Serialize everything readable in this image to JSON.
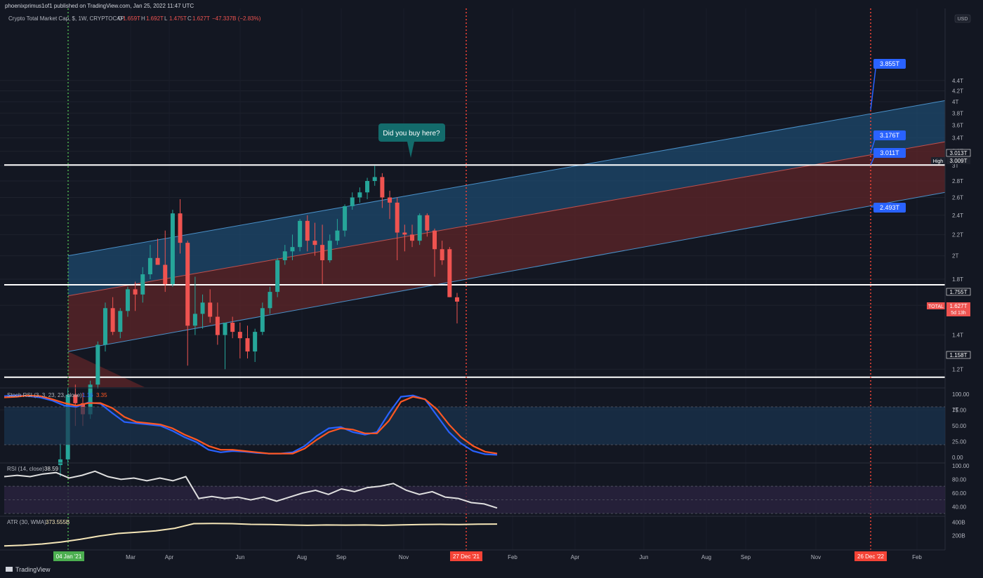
{
  "header": {
    "publisher": "phoenixprimus1of1 published on TradingView.com, Jan 25, 2022 11:47 UTC",
    "symbol_line": "Crypto Total Market Cap, $, 1W, CRYPTOCAP",
    "ohlc": {
      "o_label": "O",
      "o": "1.659T",
      "h_label": "H",
      "h": "1.692T",
      "l_label": "L",
      "l": "1.475T",
      "c_label": "C",
      "c": "1.627T",
      "change": "−47.337B (−2.83%)"
    },
    "currency": "USD"
  },
  "footer": {
    "brand": "TradingView"
  },
  "colors": {
    "up": "#26a69a",
    "down": "#ef5350",
    "bg": "#131722",
    "blue_band": "#1e4a6e",
    "red_band": "#5a2428",
    "blue_label": "#2962ff",
    "rsi_k": "#2962ff",
    "rsi_d": "#ff5722"
  },
  "annotation": {
    "text": "Did you buy here?"
  },
  "markers": {
    "start_date": "04 Jan '21",
    "mid_date": "27 Dec '21",
    "end_date": "26 Dec '22"
  },
  "channel_labels": [
    "3.855T",
    "3.176T",
    "3.011T",
    "2.493T"
  ],
  "price_labels": {
    "high_text": "High",
    "high_value": "3.009T",
    "level_top": "3.013T",
    "level_mid": "1.755T",
    "level_low": "1.158T",
    "symbol": "TOTAL",
    "last": "1.627T",
    "countdown": "5d 13h"
  },
  "chart_data": [
    {
      "type": "candlestick",
      "title": "Crypto Total Market Cap, $, 1W, CRYPTOCAP",
      "y_axis_ticks": [
        "4.4T",
        "4.2T",
        "4T",
        "3.8T",
        "3.6T",
        "3.4T",
        "3.2T",
        "3T",
        "2.8T",
        "2.6T",
        "2.4T",
        "2.2T",
        "2T",
        "1.8T",
        "1.6T",
        "1.4T",
        "1.2T",
        "1T"
      ],
      "x_axis_ticks": [
        "Mar",
        "Apr",
        "Jun",
        "Aug",
        "Sep",
        "Nov",
        "Feb",
        "Apr",
        "Jun",
        "Aug",
        "Sep",
        "Nov",
        "Feb"
      ],
      "horizontal_levels": [
        3.009,
        1.755,
        1.158
      ],
      "channel": {
        "upper_end": 3.855,
        "middle_end": 3.176,
        "lower_end": 2.493
      },
      "candles": [
        {
          "o": 0.78,
          "h": 0.86,
          "l": 0.74,
          "c": 0.8
        },
        {
          "o": 0.8,
          "h": 1.1,
          "l": 0.78,
          "c": 1.07
        },
        {
          "o": 1.07,
          "h": 1.12,
          "l": 0.93,
          "c": 1.03
        },
        {
          "o": 1.03,
          "h": 1.08,
          "l": 0.93,
          "c": 0.98
        },
        {
          "o": 0.98,
          "h": 1.14,
          "l": 0.96,
          "c": 1.12
        },
        {
          "o": 1.12,
          "h": 1.36,
          "l": 1.1,
          "c": 1.34
        },
        {
          "o": 1.34,
          "h": 1.62,
          "l": 1.3,
          "c": 1.58
        },
        {
          "o": 1.58,
          "h": 1.66,
          "l": 1.4,
          "c": 1.42
        },
        {
          "o": 1.42,
          "h": 1.58,
          "l": 1.38,
          "c": 1.56
        },
        {
          "o": 1.56,
          "h": 1.74,
          "l": 1.52,
          "c": 1.72
        },
        {
          "o": 1.72,
          "h": 1.78,
          "l": 1.56,
          "c": 1.68
        },
        {
          "o": 1.68,
          "h": 1.9,
          "l": 1.62,
          "c": 1.84
        },
        {
          "o": 1.84,
          "h": 2.1,
          "l": 1.8,
          "c": 1.98
        },
        {
          "o": 1.98,
          "h": 2.16,
          "l": 1.92,
          "c": 1.92
        },
        {
          "o": 1.92,
          "h": 2.24,
          "l": 1.7,
          "c": 1.76
        },
        {
          "o": 1.76,
          "h": 2.46,
          "l": 1.74,
          "c": 2.42
        },
        {
          "o": 2.42,
          "h": 2.58,
          "l": 2.02,
          "c": 2.12
        },
        {
          "o": 2.12,
          "h": 2.14,
          "l": 1.22,
          "c": 1.46
        },
        {
          "o": 1.46,
          "h": 1.82,
          "l": 1.4,
          "c": 1.54
        },
        {
          "o": 1.54,
          "h": 1.68,
          "l": 1.44,
          "c": 1.62
        },
        {
          "o": 1.62,
          "h": 1.72,
          "l": 1.48,
          "c": 1.52
        },
        {
          "o": 1.52,
          "h": 1.62,
          "l": 1.34,
          "c": 1.4
        },
        {
          "o": 1.4,
          "h": 1.48,
          "l": 1.2,
          "c": 1.48
        },
        {
          "o": 1.48,
          "h": 1.52,
          "l": 1.38,
          "c": 1.42
        },
        {
          "o": 1.42,
          "h": 1.48,
          "l": 1.26,
          "c": 1.38
        },
        {
          "o": 1.38,
          "h": 1.46,
          "l": 1.26,
          "c": 1.3
        },
        {
          "o": 1.3,
          "h": 1.44,
          "l": 1.24,
          "c": 1.42
        },
        {
          "o": 1.42,
          "h": 1.62,
          "l": 1.4,
          "c": 1.58
        },
        {
          "o": 1.58,
          "h": 1.74,
          "l": 1.54,
          "c": 1.7
        },
        {
          "o": 1.7,
          "h": 1.98,
          "l": 1.66,
          "c": 1.96
        },
        {
          "o": 1.96,
          "h": 2.1,
          "l": 1.92,
          "c": 2.04
        },
        {
          "o": 2.04,
          "h": 2.2,
          "l": 1.96,
          "c": 2.08
        },
        {
          "o": 2.08,
          "h": 2.36,
          "l": 2.04,
          "c": 2.34
        },
        {
          "o": 2.34,
          "h": 2.4,
          "l": 2.04,
          "c": 2.14
        },
        {
          "o": 2.14,
          "h": 2.32,
          "l": 2.0,
          "c": 2.1
        },
        {
          "o": 2.1,
          "h": 2.3,
          "l": 1.76,
          "c": 1.96
        },
        {
          "o": 1.96,
          "h": 2.2,
          "l": 1.94,
          "c": 2.14
        },
        {
          "o": 2.14,
          "h": 2.36,
          "l": 2.1,
          "c": 2.24
        },
        {
          "o": 2.24,
          "h": 2.52,
          "l": 2.18,
          "c": 2.5
        },
        {
          "o": 2.5,
          "h": 2.66,
          "l": 2.46,
          "c": 2.6
        },
        {
          "o": 2.6,
          "h": 2.72,
          "l": 2.54,
          "c": 2.66
        },
        {
          "o": 2.66,
          "h": 2.84,
          "l": 2.58,
          "c": 2.8
        },
        {
          "o": 2.8,
          "h": 3.0,
          "l": 2.74,
          "c": 2.85
        },
        {
          "o": 2.85,
          "h": 2.9,
          "l": 2.48,
          "c": 2.6
        },
        {
          "o": 2.6,
          "h": 2.68,
          "l": 2.36,
          "c": 2.54
        },
        {
          "o": 2.54,
          "h": 2.6,
          "l": 1.96,
          "c": 2.22
        },
        {
          "o": 2.22,
          "h": 2.3,
          "l": 2.04,
          "c": 2.2
        },
        {
          "o": 2.2,
          "h": 2.3,
          "l": 2.08,
          "c": 2.14
        },
        {
          "o": 2.14,
          "h": 2.42,
          "l": 2.1,
          "c": 2.4
        },
        {
          "o": 2.4,
          "h": 2.42,
          "l": 2.18,
          "c": 2.24
        },
        {
          "o": 2.24,
          "h": 2.26,
          "l": 1.82,
          "c": 2.06
        },
        {
          "o": 2.06,
          "h": 2.14,
          "l": 1.92,
          "c": 1.96
        },
        {
          "o": 2.06,
          "h": 2.08,
          "l": 1.66,
          "c": 1.66
        },
        {
          "o": 1.659,
          "h": 1.692,
          "l": 1.475,
          "c": 1.627
        }
      ]
    },
    {
      "type": "line",
      "title": "Stoch RSI (3, 3, 23, 23, close)",
      "values_text": [
        "1.16",
        "3.35"
      ],
      "y_axis_ticks": [
        "100.00",
        "75.00",
        "50.00",
        "25.00",
        "0.00"
      ],
      "ylim": [
        0,
        100
      ],
      "series": [
        {
          "values": [
            97,
            98,
            97,
            95,
            90,
            82,
            80,
            87,
            85,
            70,
            56,
            54,
            52,
            50,
            42,
            32,
            24,
            12,
            8,
            10,
            9,
            7,
            6,
            6,
            8,
            18,
            34,
            46,
            48,
            40,
            36,
            40,
            70,
            96,
            98,
            92,
            66,
            40,
            22,
            10,
            5,
            4
          ]
        },
        {
          "values": [
            95,
            96,
            98,
            97,
            92,
            86,
            82,
            86,
            86,
            78,
            64,
            56,
            54,
            52,
            46,
            36,
            28,
            18,
            12,
            12,
            10,
            8,
            6,
            6,
            6,
            14,
            28,
            40,
            46,
            44,
            38,
            38,
            58,
            88,
            96,
            92,
            76,
            52,
            32,
            18,
            9,
            6
          ]
        }
      ]
    },
    {
      "type": "line",
      "title": "RSI (14, close)",
      "values_text": [
        "38.59"
      ],
      "y_axis_ticks": [
        "100.00",
        "80.00",
        "60.00",
        "40.00"
      ],
      "ylim": [
        30,
        100
      ],
      "series": [
        {
          "values": [
            84,
            86,
            84,
            88,
            90,
            82,
            86,
            92,
            84,
            80,
            82,
            78,
            82,
            78,
            84,
            52,
            55,
            52,
            54,
            50,
            54,
            48,
            54,
            60,
            64,
            58,
            66,
            62,
            68,
            70,
            74,
            64,
            58,
            62,
            54,
            52,
            46,
            44,
            38
          ]
        }
      ]
    },
    {
      "type": "line",
      "title": "ATR (30, WMA)",
      "values_text": [
        "373.555B"
      ],
      "y_axis_ticks": [
        "400B",
        "200B"
      ],
      "ylim": [
        0,
        450
      ],
      "series": [
        {
          "values": [
            40,
            50,
            70,
            100,
            140,
            190,
            230,
            250,
            270,
            310,
            380,
            382,
            380,
            370,
            366,
            360,
            355,
            360,
            358,
            360,
            355,
            362,
            368,
            370,
            366,
            372,
            374
          ]
        }
      ]
    }
  ]
}
